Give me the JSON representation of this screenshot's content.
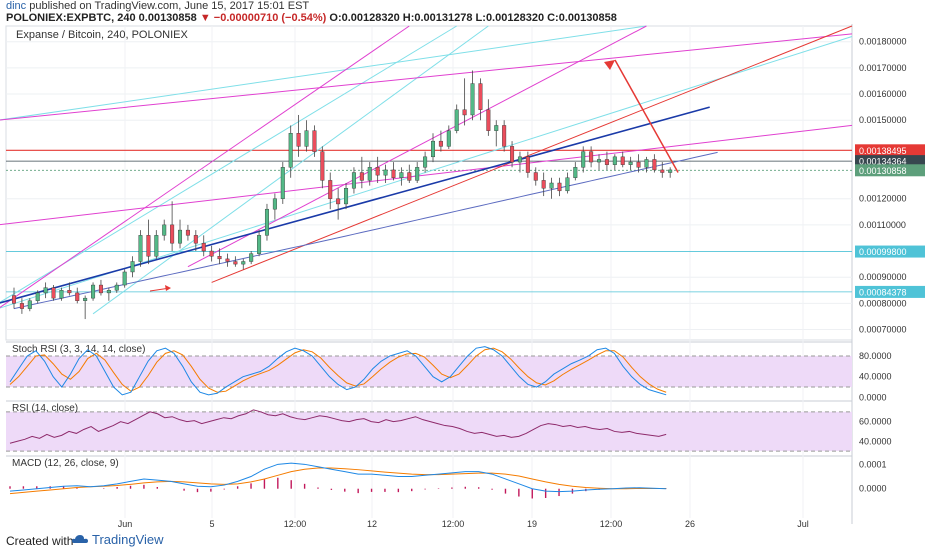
{
  "header": {
    "author": "dinc",
    "published": "published on TradingView.com, June 15, 2017 15:01 EST",
    "symbol": "POLONIEX:EXPBTC, 240",
    "last": "0.00130858",
    "change": "▼ −0.00000710 (−0.54%)",
    "ohlc": "O:0.00128320  H:0.00131278  L:0.00128320  C:0.00130858"
  },
  "footer": {
    "created": "Created with",
    "brand": "TradingView"
  },
  "chart_data": {
    "type": "candlestick",
    "title": "Expanse / Bitcoin, 240, POLONIEX",
    "colors": {
      "up": "#53b987",
      "down": "#eb4d5c",
      "magenta": "#e040d0",
      "cyan": "#7fdfe8",
      "red": "#e53935",
      "navy": "#1a3aa8"
    },
    "x_ticks": [
      "Jun",
      "5",
      "12:00",
      "12",
      "12:00",
      "19",
      "12:00",
      "26",
      "Jul"
    ],
    "y_ticks": [
      "0.00180000",
      "0.00170000",
      "0.00160000",
      "0.00150000",
      "0.00120000",
      "0.00110000",
      "0.00090000",
      "0.00080000",
      "0.00070000"
    ],
    "price_labels": [
      {
        "text": "0.00138495",
        "value": 0.00138495,
        "color": "#e53935"
      },
      {
        "text": "0.00134364",
        "value": 0.00134364,
        "color": "#37474f"
      },
      {
        "text": "0.00130858",
        "value": 0.00130858,
        "color": "#5d9f7b"
      },
      {
        "text": "0.00099800",
        "value": 0.000998,
        "color": "#4fc3d7"
      },
      {
        "text": "0.00084378",
        "value": 0.00084378,
        "color": "#4fc3d7"
      }
    ],
    "ylim": [
      0.00066,
      0.00186
    ],
    "n_bars": 106,
    "candles": [
      [
        0.00083,
        0.00086,
        0.00078,
        0.0008
      ],
      [
        0.0008,
        0.00082,
        0.00076,
        0.00078
      ],
      [
        0.00078,
        0.00082,
        0.00077,
        0.00081
      ],
      [
        0.00081,
        0.00085,
        0.0008,
        0.00084
      ],
      [
        0.00084,
        0.00088,
        0.00082,
        0.00086
      ],
      [
        0.00086,
        0.00087,
        0.00081,
        0.00082
      ],
      [
        0.00082,
        0.00086,
        0.00081,
        0.00085
      ],
      [
        0.00085,
        0.00088,
        0.00083,
        0.00084
      ],
      [
        0.00084,
        0.00086,
        0.0008,
        0.00081
      ],
      [
        0.00081,
        0.00083,
        0.00074,
        0.00082
      ],
      [
        0.00082,
        0.00088,
        0.00081,
        0.00087
      ],
      [
        0.00087,
        0.00089,
        0.00083,
        0.00084
      ],
      [
        0.00084,
        0.00086,
        0.00081,
        0.00085
      ],
      [
        0.00085,
        0.00088,
        0.00084,
        0.00087
      ],
      [
        0.00087,
        0.00093,
        0.00086,
        0.00092
      ],
      [
        0.00092,
        0.00098,
        0.0009,
        0.00096
      ],
      [
        0.00096,
        0.00108,
        0.00094,
        0.00106
      ],
      [
        0.00106,
        0.00112,
        0.00095,
        0.00098
      ],
      [
        0.00098,
        0.00108,
        0.00097,
        0.00106
      ],
      [
        0.00106,
        0.00112,
        0.00104,
        0.0011
      ],
      [
        0.0011,
        0.00119,
        0.001,
        0.00103
      ],
      [
        0.00103,
        0.00112,
        0.00101,
        0.00108
      ],
      [
        0.00108,
        0.0011,
        0.00104,
        0.00106
      ],
      [
        0.00106,
        0.00108,
        0.001,
        0.00103
      ],
      [
        0.00103,
        0.00106,
        0.00098,
        0.001
      ],
      [
        0.001,
        0.00102,
        0.00096,
        0.00098
      ],
      [
        0.00098,
        0.00101,
        0.00095,
        0.00097
      ],
      [
        0.00097,
        0.00099,
        0.00094,
        0.00096
      ],
      [
        0.00096,
        0.00098,
        0.00094,
        0.00095
      ],
      [
        0.00095,
        0.00097,
        0.00093,
        0.00096
      ],
      [
        0.00096,
        0.001,
        0.00095,
        0.00099
      ],
      [
        0.00099,
        0.00108,
        0.00098,
        0.00106
      ],
      [
        0.00106,
        0.00118,
        0.00104,
        0.00116
      ],
      [
        0.00116,
        0.00122,
        0.00112,
        0.0012
      ],
      [
        0.0012,
        0.00134,
        0.00118,
        0.00132
      ],
      [
        0.00132,
        0.00148,
        0.00128,
        0.00145
      ],
      [
        0.00145,
        0.00152,
        0.00136,
        0.0014
      ],
      [
        0.0014,
        0.0015,
        0.00138,
        0.00146
      ],
      [
        0.00146,
        0.00148,
        0.00136,
        0.00138
      ],
      [
        0.00138,
        0.0014,
        0.00124,
        0.00127
      ],
      [
        0.00127,
        0.0013,
        0.00116,
        0.0012
      ],
      [
        0.0012,
        0.00124,
        0.00112,
        0.00118
      ],
      [
        0.00118,
        0.00126,
        0.00116,
        0.00124
      ],
      [
        0.00124,
        0.00132,
        0.00122,
        0.0013
      ],
      [
        0.0013,
        0.00136,
        0.00124,
        0.00127
      ],
      [
        0.00127,
        0.00134,
        0.00125,
        0.00132
      ],
      [
        0.00132,
        0.00136,
        0.00126,
        0.00129
      ],
      [
        0.00129,
        0.00133,
        0.00126,
        0.00131
      ],
      [
        0.00131,
        0.00134,
        0.00127,
        0.00128
      ],
      [
        0.00128,
        0.00132,
        0.00125,
        0.0013
      ],
      [
        0.0013,
        0.00133,
        0.00126,
        0.00127
      ],
      [
        0.00127,
        0.00134,
        0.00126,
        0.00132
      ],
      [
        0.00132,
        0.00138,
        0.0013,
        0.00136
      ],
      [
        0.00136,
        0.00145,
        0.00134,
        0.00142
      ],
      [
        0.00142,
        0.00146,
        0.00138,
        0.0014
      ],
      [
        0.0014,
        0.00148,
        0.00139,
        0.00146
      ],
      [
        0.00146,
        0.00156,
        0.00145,
        0.00154
      ],
      [
        0.00154,
        0.00166,
        0.00148,
        0.00152
      ],
      [
        0.00152,
        0.00169,
        0.0015,
        0.00164
      ],
      [
        0.00164,
        0.00166,
        0.0015,
        0.00154
      ],
      [
        0.00154,
        0.00158,
        0.00144,
        0.00146
      ],
      [
        0.00146,
        0.0015,
        0.0014,
        0.00148
      ],
      [
        0.00148,
        0.0015,
        0.00138,
        0.0014
      ],
      [
        0.0014,
        0.00142,
        0.00132,
        0.00134
      ],
      [
        0.00134,
        0.00138,
        0.0013,
        0.00136
      ],
      [
        0.00136,
        0.00138,
        0.00128,
        0.0013
      ],
      [
        0.0013,
        0.00132,
        0.00125,
        0.00127
      ],
      [
        0.00127,
        0.0013,
        0.00121,
        0.00124
      ],
      [
        0.00124,
        0.00128,
        0.0012,
        0.00126
      ],
      [
        0.00126,
        0.00128,
        0.00121,
        0.00123
      ],
      [
        0.00123,
        0.0013,
        0.00122,
        0.00128
      ],
      [
        0.00128,
        0.00134,
        0.00127,
        0.00132
      ],
      [
        0.00132,
        0.0014,
        0.0013,
        0.00138
      ],
      [
        0.00138,
        0.0014,
        0.00132,
        0.00134
      ],
      [
        0.00134,
        0.00137,
        0.00131,
        0.00135
      ],
      [
        0.00135,
        0.00138,
        0.00131,
        0.00133
      ],
      [
        0.00133,
        0.00137,
        0.00131,
        0.00136
      ],
      [
        0.00136,
        0.00138,
        0.00132,
        0.00133
      ],
      [
        0.00133,
        0.00136,
        0.00131,
        0.00134
      ],
      [
        0.00134,
        0.00137,
        0.0013,
        0.00132
      ],
      [
        0.00132,
        0.00136,
        0.0013,
        0.00135
      ],
      [
        0.00135,
        0.00137,
        0.0013,
        0.00131
      ],
      [
        0.00131,
        0.00134,
        0.00128,
        0.0013
      ],
      [
        0.0013,
        0.00132,
        0.00128,
        0.00131
      ]
    ],
    "stoch_rsi": {
      "title": "Stoch RSI (3, 3, 14, 14, close)",
      "y_ticks": [
        "80.0000",
        "40.0000",
        "0.0000"
      ],
      "ylim": [
        -5,
        105
      ],
      "band": [
        20,
        80
      ],
      "k": [
        30,
        55,
        80,
        90,
        70,
        40,
        20,
        45,
        75,
        92,
        80,
        50,
        20,
        5,
        10,
        40,
        70,
        90,
        95,
        85,
        60,
        30,
        10,
        5,
        8,
        20,
        30,
        40,
        45,
        50,
        60,
        75,
        88,
        95,
        90,
        80,
        60,
        40,
        25,
        15,
        20,
        35,
        55,
        70,
        80,
        85,
        90,
        80,
        60,
        40,
        30,
        40,
        60,
        80,
        95,
        98,
        92,
        80,
        60,
        40,
        25,
        20,
        30,
        45,
        55,
        65,
        72,
        80,
        92,
        95,
        85,
        60,
        40,
        25,
        15,
        10,
        5
      ],
      "d": [
        25,
        40,
        60,
        80,
        82,
        65,
        45,
        35,
        50,
        75,
        85,
        72,
        48,
        25,
        12,
        20,
        42,
        68,
        85,
        90,
        82,
        60,
        35,
        18,
        10,
        12,
        22,
        32,
        40,
        46,
        52,
        62,
        74,
        86,
        92,
        88,
        76,
        58,
        42,
        28,
        22,
        26,
        40,
        55,
        68,
        78,
        84,
        85,
        78,
        62,
        45,
        38,
        45,
        62,
        80,
        92,
        95,
        88,
        74,
        56,
        40,
        28,
        24,
        32,
        44,
        54,
        63,
        72,
        82,
        90,
        90,
        78,
        58,
        40,
        26,
        16,
        10
      ]
    },
    "rsi": {
      "title": "RSI (14, close)",
      "y_ticks": [
        "60.0000",
        "40.0000"
      ],
      "ylim": [
        26,
        80
      ],
      "band": [
        30,
        70
      ],
      "values": [
        38,
        40,
        42,
        45,
        43,
        47,
        44,
        46,
        50,
        48,
        52,
        55,
        50,
        53,
        56,
        60,
        58,
        62,
        66,
        70,
        68,
        64,
        65,
        62,
        60,
        61,
        58,
        60,
        62,
        64,
        63,
        66,
        68,
        72,
        70,
        67,
        66,
        68,
        65,
        63,
        62,
        64,
        66,
        65,
        63,
        61,
        60,
        62,
        63,
        60,
        59,
        62,
        60,
        61,
        63,
        65,
        62,
        60,
        58,
        56,
        55,
        53,
        50,
        48,
        49,
        47,
        45,
        46,
        44,
        45,
        48,
        52,
        56,
        58,
        57,
        55,
        56,
        54,
        55,
        53,
        52,
        53,
        50,
        49,
        50,
        48,
        47,
        46,
        45,
        47
      ]
    },
    "macd": {
      "title": "MACD (12, 26, close, 9)",
      "y_ticks": [
        "0.0001",
        "0.0000"
      ],
      "ylim": [
        -0.00012,
        0.00013
      ],
      "macd": [
        -1e-05,
        -5e-06,
        0,
        5e-06,
        1e-05,
        1.2e-05,
        8e-06,
        1.2e-05,
        2e-05,
        3e-05,
        4e-05,
        3.5e-05,
        3e-05,
        2e-05,
        1e-05,
        8e-06,
        1.5e-05,
        3e-05,
        5e-05,
        8e-05,
        0.0001,
        0.000105,
        0.0001,
        9e-05,
        8e-05,
        7e-05,
        6e-05,
        6e-05,
        5.5e-05,
        5e-05,
        5e-05,
        5.5e-05,
        6e-05,
        6.5e-05,
        7e-05,
        7e-05,
        6e-05,
        4e-05,
        2e-05,
        0,
        -1e-05,
        -1.2e-05,
        -1e-05,
        -5e-06,
        -2e-06,
        0,
        3e-06,
        4e-06,
        2e-06,
        0
      ],
      "signal": [
        -2e-05,
        -1.5e-05,
        -1e-05,
        -5e-06,
        0,
        5e-06,
        8e-06,
        1e-05,
        1.3e-05,
        1.8e-05,
        2.4e-05,
        2.8e-05,
        3e-05,
        2.8e-05,
        2.4e-05,
        2e-05,
        1.8e-05,
        2e-05,
        2.8e-05,
        4e-05,
        5.5e-05,
        7e-05,
        8e-05,
        8.5e-05,
        8.5e-05,
        8.2e-05,
        7.8e-05,
        7.3e-05,
        6.8e-05,
        6.4e-05,
        6e-05,
        5.8e-05,
        5.8e-05,
        6e-05,
        6.2e-05,
        6.4e-05,
        6.4e-05,
        6e-05,
        5.2e-05,
        4e-05,
        2.8e-05,
        1.8e-05,
        1e-05,
        5e-06,
        2e-06,
        0,
        0,
        1e-06,
        1e-06,
        1e-06
      ],
      "hist": [
        1e-05,
        1e-05,
        1e-05,
        1e-05,
        1e-05,
        7e-06,
        0,
        2e-06,
        7e-06,
        1.2e-05,
        1.6e-05,
        7e-06,
        0,
        -8e-06,
        -1.4e-05,
        -1.2e-05,
        -3e-06,
        1e-05,
        2.2e-05,
        4e-05,
        4.5e-05,
        3.5e-05,
        2e-05,
        5e-06,
        -5e-06,
        -1.2e-05,
        -1.8e-05,
        -1.3e-05,
        -1.3e-05,
        -1.4e-05,
        -1e-05,
        -3e-06,
        2e-06,
        5e-06,
        8e-06,
        6e-06,
        -4e-06,
        -2e-05,
        -3.2e-05,
        -4e-05,
        -3.8e-05,
        -3e-05,
        -2e-05,
        -1e-05,
        -4e-06,
        0,
        3e-06,
        3e-06,
        1e-06,
        -1e-06
      ]
    }
  }
}
